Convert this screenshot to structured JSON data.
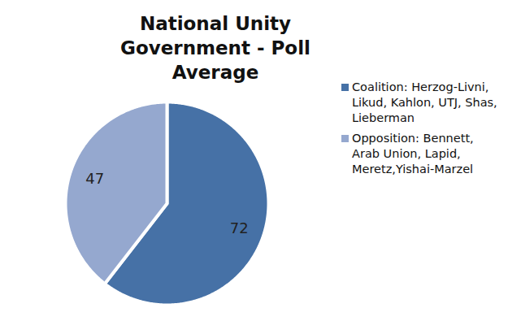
{
  "chart_data": {
    "type": "pie",
    "title": "National Unity Government - Poll Average",
    "categories": [
      "Coalition: Herzog-Livni, Likud, Kahlon, UTJ, Shas, Lieberman",
      "Opposition: Bennett, Arab Union, Lapid, Meretz,Yishai-Marzel"
    ],
    "values": [
      72,
      47
    ],
    "colors": [
      "#4671a6",
      "#95a8cf"
    ],
    "data_labels": true,
    "legend": "right"
  }
}
